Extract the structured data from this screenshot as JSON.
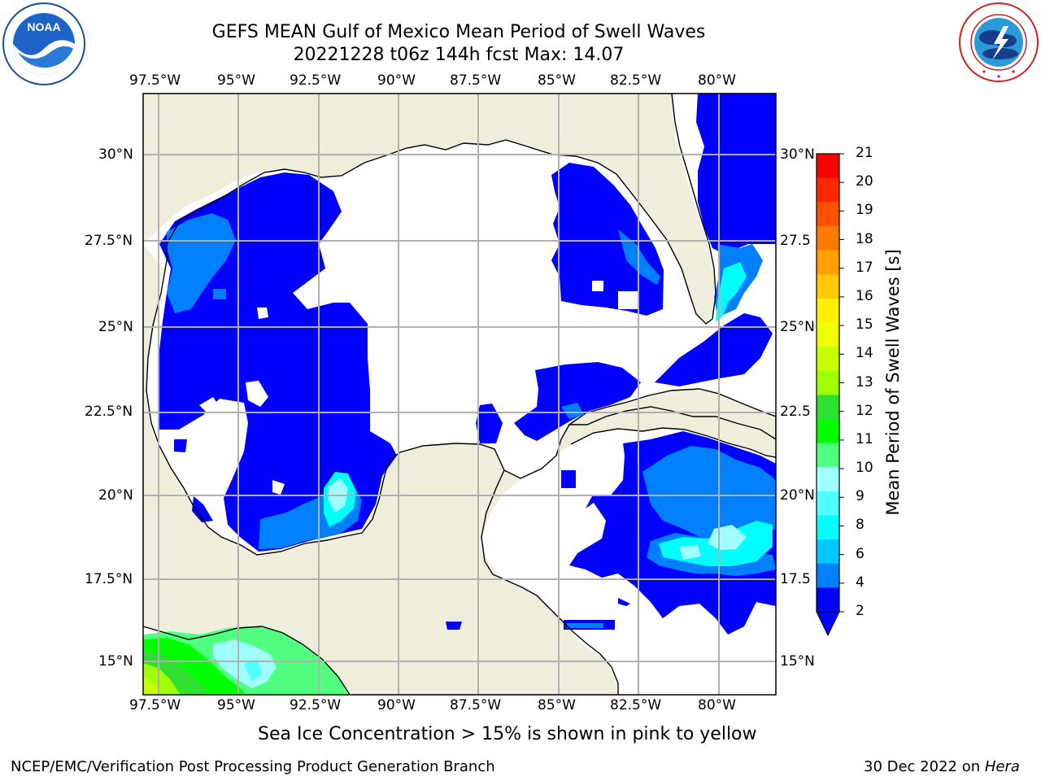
{
  "header": {
    "title_line1": "GEFS MEAN Gulf of Mexico Mean Period of Swell Waves",
    "title_line2": "20221228 t06z 144h fcst   Max: 14.07"
  },
  "logos": {
    "noaa_text": "NOAA",
    "noaa_ring_text": "NATIONAL OCEANIC AND ATMOSPHERIC ADMINISTRATION · U.S. DEPARTMENT OF COMMERCE",
    "nws_ring_text": "NATIONAL WEATHER SERVICE"
  },
  "map": {
    "lon_labels": [
      "97.5°W",
      "95°W",
      "92.5°W",
      "90°W",
      "87.5°W",
      "85°W",
      "82.5°W",
      "80°W"
    ],
    "lat_labels_left": [
      "30°N",
      "27.5°N",
      "25°N",
      "22.5°N",
      "20°N",
      "17.5°N",
      "15°N"
    ],
    "lat_labels_right": [
      "30°N",
      "27.5",
      "25°N",
      "22.5",
      "20°N",
      "17.5",
      "15°N"
    ],
    "colors": {
      "land": "#efeedc",
      "ocean_blank": "#ffffff",
      "grid": "#b0b0b0",
      "coast": "#000000"
    }
  },
  "colorbar": {
    "label": "Mean Period of Swell Waves [s]",
    "ticks": [
      "21",
      "20",
      "19",
      "18",
      "17",
      "16",
      "15",
      "14",
      "13",
      "12",
      "11",
      "10",
      "9",
      "8",
      "6",
      "4",
      "2"
    ],
    "colors": [
      "#ff0000",
      "#ff2800",
      "#ff5000",
      "#ff7800",
      "#ffa000",
      "#ffc800",
      "#fff000",
      "#f0ff00",
      "#c8ff00",
      "#a0ff00",
      "#30e030",
      "#00ff00",
      "#50ff80",
      "#a0ffff",
      "#50ffff",
      "#00ffff",
      "#00c8ff",
      "#0080ff",
      "#0000ff"
    ]
  },
  "footer": {
    "sea_ice_note": "Sea Ice Concentration > 15% is shown in pink to yellow",
    "branch": "NCEP/EMC/Verification Post Processing Product Generation Branch",
    "date": "30 Dec 2022 on",
    "machine": "Hera"
  }
}
